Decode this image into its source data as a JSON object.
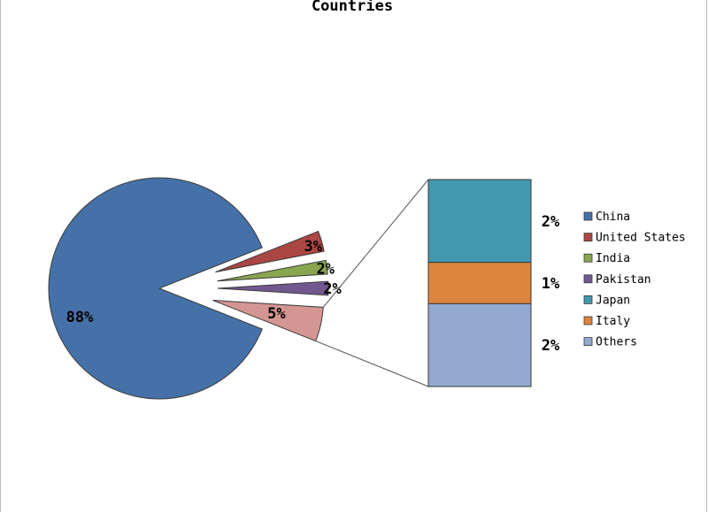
{
  "chart_data": {
    "type": "pie",
    "title": "Countries",
    "slices": [
      {
        "label": "China",
        "value": 88,
        "display": "88%",
        "color": "#4571a8"
      },
      {
        "label": "United States",
        "value": 3,
        "display": "3%",
        "color": "#aa4643"
      },
      {
        "label": "India",
        "value": 2,
        "display": "2%",
        "color": "#89a54e"
      },
      {
        "label": "Pakistan",
        "value": 2,
        "display": "2%",
        "color": "#71588f"
      },
      {
        "label": "Others",
        "value": 5,
        "display": "5%",
        "color": "#d49692"
      }
    ],
    "breakdown": {
      "of": "Others",
      "items": [
        {
          "label": "Japan",
          "value": 2,
          "display": "2%",
          "color": "#4198af"
        },
        {
          "label": "Italy",
          "value": 1,
          "display": "1%",
          "color": "#db843d"
        },
        {
          "label": "Others",
          "value": 2,
          "display": "2%",
          "color": "#93a9cf"
        }
      ]
    },
    "legend": {
      "position": "right",
      "items": [
        {
          "label": "China",
          "color": "#4571a8"
        },
        {
          "label": "United States",
          "color": "#aa4643"
        },
        {
          "label": "India",
          "color": "#89a54e"
        },
        {
          "label": "Pakistan",
          "color": "#71588f"
        },
        {
          "label": "Japan",
          "color": "#4198af"
        },
        {
          "label": "Italy",
          "color": "#db843d"
        },
        {
          "label": "Others",
          "color": "#93a9cf"
        }
      ]
    }
  }
}
